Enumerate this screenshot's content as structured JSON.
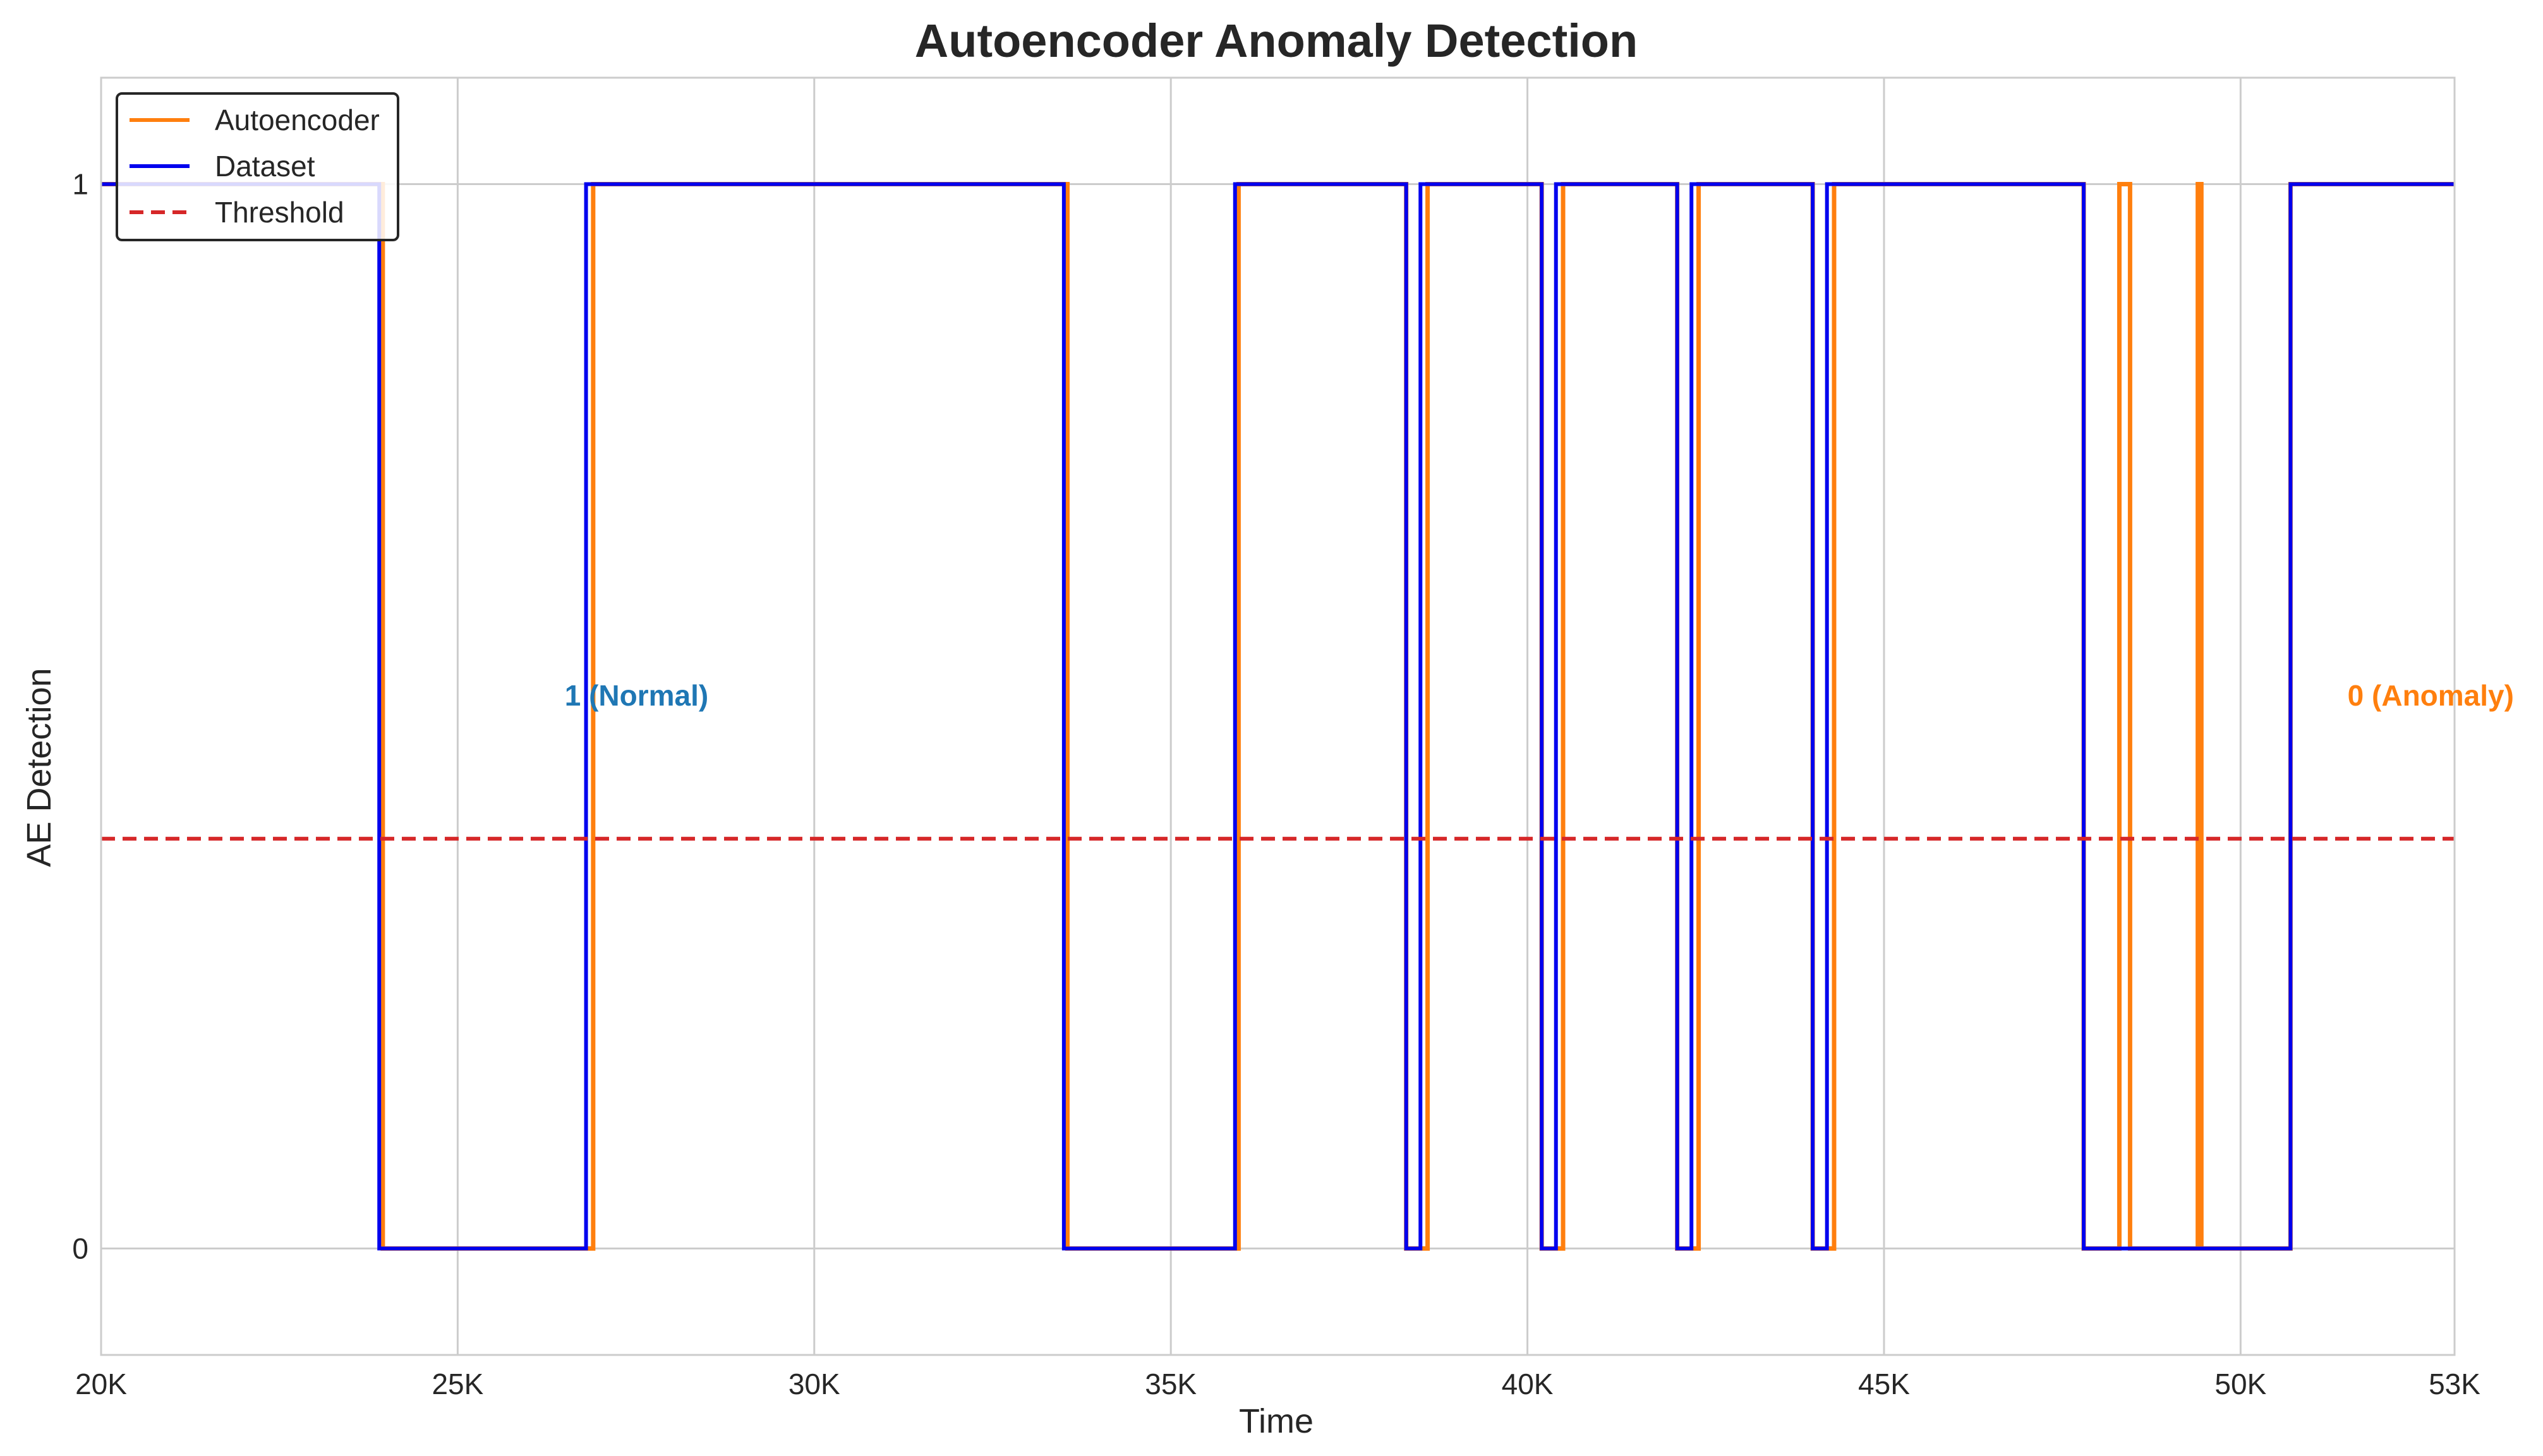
{
  "chart_data": {
    "type": "line",
    "title": "Autoencoder Anomaly Detection",
    "xlabel": "Time",
    "ylabel": "AE Detection",
    "xlim": [
      20000,
      53000
    ],
    "ylim": [
      -0.1,
      1.1
    ],
    "grid": true,
    "legend_position": "top-left",
    "x_ticks": [
      20000,
      25000,
      30000,
      35000,
      40000,
      45000,
      50000,
      53000
    ],
    "x_tick_labels": [
      "20K",
      "25K",
      "30K",
      "35K",
      "40K",
      "45K",
      "50K",
      "53K"
    ],
    "y_ticks": [
      0,
      1
    ],
    "y_tick_labels": [
      "0",
      "1"
    ],
    "series": [
      {
        "name": "Dataset",
        "color": "#0000ee",
        "style": "solid",
        "step_changes": [
          [
            20000,
            1
          ],
          [
            23900,
            0
          ],
          [
            26800,
            1
          ],
          [
            33500,
            0
          ],
          [
            35900,
            1
          ],
          [
            38300,
            0
          ],
          [
            38500,
            1
          ],
          [
            40200,
            0
          ],
          [
            40400,
            1
          ],
          [
            42100,
            0
          ],
          [
            42300,
            1
          ],
          [
            44000,
            0
          ],
          [
            44200,
            1
          ],
          [
            47800,
            0
          ],
          [
            50700,
            1
          ],
          [
            53000,
            1
          ]
        ]
      },
      {
        "name": "Autoencoder",
        "color": "#ff7f0e",
        "style": "solid",
        "step_changes": [
          [
            20000,
            1
          ],
          [
            23950,
            0
          ],
          [
            26900,
            1
          ],
          [
            33550,
            0
          ],
          [
            35950,
            1
          ],
          [
            38300,
            0
          ],
          [
            38600,
            1
          ],
          [
            40200,
            0
          ],
          [
            40500,
            1
          ],
          [
            42100,
            0
          ],
          [
            42400,
            1
          ],
          [
            44000,
            0
          ],
          [
            44300,
            1
          ],
          [
            47800,
            0
          ],
          [
            48300,
            1
          ],
          [
            48450,
            0
          ],
          [
            49400,
            1
          ],
          [
            49450,
            0
          ],
          [
            50700,
            1
          ],
          [
            53000,
            1
          ]
        ]
      },
      {
        "name": "Threshold",
        "color": "#d62728",
        "style": "dashed",
        "value": 0.385
      }
    ],
    "legend_order": [
      "Autoencoder",
      "Dataset",
      "Threshold"
    ],
    "annotations": [
      {
        "text": "1 (Normal)",
        "x": 26500,
        "y": 0.51,
        "color": "#1f77b4"
      },
      {
        "text": "0 (Anomaly)",
        "x": 51500,
        "y": 0.51,
        "color": "#ff7f0e"
      }
    ]
  }
}
